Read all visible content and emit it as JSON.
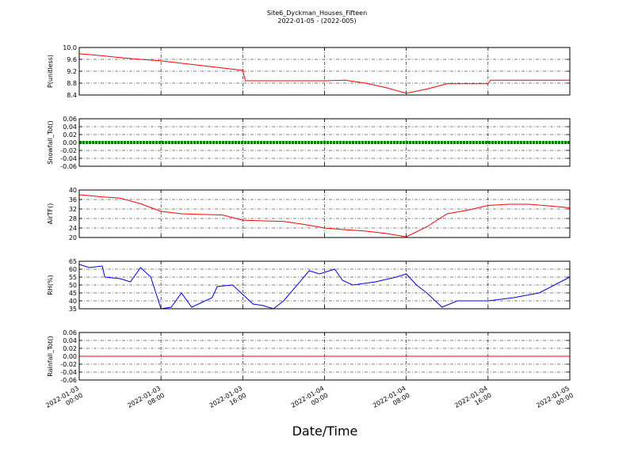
{
  "title": "Site6_Dyckman_Houses_Fifteen",
  "subtitle": "2022-01-05 - (2022-005)",
  "xaxis": {
    "label": "Date/Time",
    "xlim": [
      "2022-01-03 00:00",
      "2022-01-05 00:00"
    ],
    "xticks": [
      "2022-01-03 00:00",
      "2022-01-03 08:00",
      "2022-01-03 16:00",
      "2022-01-04 00:00",
      "2022-01-04 08:00",
      "2022-01-04 16:00",
      "2022-01-05 00:00"
    ],
    "grid": true
  },
  "chart_data": [
    {
      "type": "line",
      "ylabel": "P(unitless)",
      "color": "#ff0000",
      "x": [
        "2022-01-03 00:00",
        "2022-01-03 02:00",
        "2022-01-03 04:00",
        "2022-01-03 06:00",
        "2022-01-03 08:00",
        "2022-01-03 10:00",
        "2022-01-03 12:00",
        "2022-01-03 14:00",
        "2022-01-03 16:00",
        "2022-01-03 16:15",
        "2022-01-03 18:00",
        "2022-01-03 20:00",
        "2022-01-03 22:00",
        "2022-01-04 00:00",
        "2022-01-04 02:00",
        "2022-01-04 04:00",
        "2022-01-04 06:00",
        "2022-01-04 08:00",
        "2022-01-04 10:00",
        "2022-01-04 12:00",
        "2022-01-04 14:00",
        "2022-01-04 16:00",
        "2022-01-04 16:15",
        "2022-01-04 18:00",
        "2022-01-04 20:00",
        "2022-01-04 22:00",
        "2022-01-05 00:00"
      ],
      "values": [
        9.79,
        9.73,
        9.66,
        9.6,
        9.55,
        9.47,
        9.39,
        9.31,
        9.23,
        8.88,
        8.88,
        8.88,
        8.88,
        8.88,
        8.9,
        8.8,
        8.65,
        8.46,
        8.6,
        8.78,
        8.78,
        8.78,
        8.9,
        8.9,
        8.9,
        8.9,
        8.9
      ],
      "ylim": [
        8.4,
        10.0
      ],
      "yticks": [
        8.4,
        8.8,
        9.2,
        9.6,
        {
          "value": 10.0,
          "label": "10.0"
        }
      ],
      "grid": true
    },
    {
      "type": "line",
      "ylabel": "Snowfall_Tot()",
      "color": "#008000",
      "marker": "o",
      "x": [
        "2022-01-03 00:00",
        "2022-01-03 08:00",
        "2022-01-03 16:00",
        "2022-01-04 00:00",
        "2022-01-04 08:00",
        "2022-01-04 16:00",
        "2022-01-05 00:00"
      ],
      "values": [
        0,
        0,
        0,
        0,
        0,
        0,
        0
      ],
      "ylim": [
        -0.06,
        0.06
      ],
      "yticks": [
        -0.06,
        -0.04,
        -0.02,
        {
          "value": 0,
          "label": "0.00"
        },
        0.02,
        0.04,
        0.06
      ],
      "grid": true
    },
    {
      "type": "line",
      "ylabel": "AirTF()",
      "color": "#ff0000",
      "x": [
        "2022-01-03 00:00",
        "2022-01-03 02:00",
        "2022-01-03 04:00",
        "2022-01-03 06:00",
        "2022-01-03 08:00",
        "2022-01-03 10:00",
        "2022-01-03 12:00",
        "2022-01-03 14:00",
        "2022-01-03 16:00",
        "2022-01-03 18:00",
        "2022-01-03 20:00",
        "2022-01-03 22:00",
        "2022-01-04 00:00",
        "2022-01-04 02:00",
        "2022-01-04 04:00",
        "2022-01-04 06:00",
        "2022-01-04 08:00",
        "2022-01-04 10:00",
        "2022-01-04 12:00",
        "2022-01-04 14:00",
        "2022-01-04 16:00",
        "2022-01-04 18:00",
        "2022-01-04 20:00",
        "2022-01-04 22:00",
        "2022-01-05 00:00"
      ],
      "values": [
        38,
        37.2,
        36.6,
        34.2,
        31,
        30,
        29.7,
        29.5,
        27.3,
        27,
        26.8,
        25.5,
        24,
        23.3,
        22.7,
        21.7,
        20.3,
        24.5,
        30,
        31.5,
        33.5,
        34,
        34,
        33.3,
        32.5
      ],
      "ylim": [
        20,
        40
      ],
      "yticks": [
        20,
        24,
        28,
        32,
        36,
        40
      ],
      "grid": true
    },
    {
      "type": "line",
      "ylabel": "RH(%)",
      "color": "#0000ff",
      "x": [
        "2022-01-03 00:00",
        "2022-01-03 01:00",
        "2022-01-03 02:15",
        "2022-01-03 02:30",
        "2022-01-03 04:00",
        "2022-01-03 05:00",
        "2022-01-03 06:00",
        "2022-01-03 07:00",
        "2022-01-03 08:00",
        "2022-01-03 09:00",
        "2022-01-03 10:00",
        "2022-01-03 11:00",
        "2022-01-03 12:00",
        "2022-01-03 13:00",
        "2022-01-03 13:30",
        "2022-01-03 15:00",
        "2022-01-03 16:00",
        "2022-01-03 17:00",
        "2022-01-03 18:00",
        "2022-01-03 19:00",
        "2022-01-03 20:00",
        "2022-01-03 22:30",
        "2022-01-03 23:30",
        "2022-01-04 01:00",
        "2022-01-04 01:45",
        "2022-01-04 02:45",
        "2022-01-04 05:00",
        "2022-01-04 07:00",
        "2022-01-04 08:00",
        "2022-01-04 09:00",
        "2022-01-04 10:00",
        "2022-01-04 11:30",
        "2022-01-04 13:00",
        "2022-01-04 16:00",
        "2022-01-04 18:30",
        "2022-01-04 21:00",
        "2022-01-05 00:00"
      ],
      "values": [
        63,
        61,
        62,
        55,
        54,
        52,
        61,
        55,
        35,
        36,
        45,
        36,
        39,
        42,
        49,
        50,
        44,
        38,
        37,
        35,
        40,
        59,
        57,
        60,
        53,
        50,
        52,
        55,
        57,
        50,
        45,
        36,
        40,
        40,
        42,
        45,
        55
      ],
      "ylim": [
        35,
        65
      ],
      "yticks": [
        35,
        40,
        45,
        50,
        55,
        60,
        65
      ],
      "grid": true
    },
    {
      "type": "line",
      "ylabel": "Rainfall_Tot()",
      "color": "#ff0000",
      "x": [
        "2022-01-03 00:00",
        "2022-01-03 08:00",
        "2022-01-03 16:00",
        "2022-01-04 00:00",
        "2022-01-04 08:00",
        "2022-01-04 16:00",
        "2022-01-05 00:00"
      ],
      "values": [
        0,
        0,
        0,
        0,
        0,
        0,
        0
      ],
      "ylim": [
        -0.06,
        0.06
      ],
      "yticks": [
        -0.06,
        -0.04,
        -0.02,
        {
          "value": 0,
          "label": "0.00"
        },
        0.02,
        0.04,
        0.06
      ],
      "grid": true
    }
  ]
}
